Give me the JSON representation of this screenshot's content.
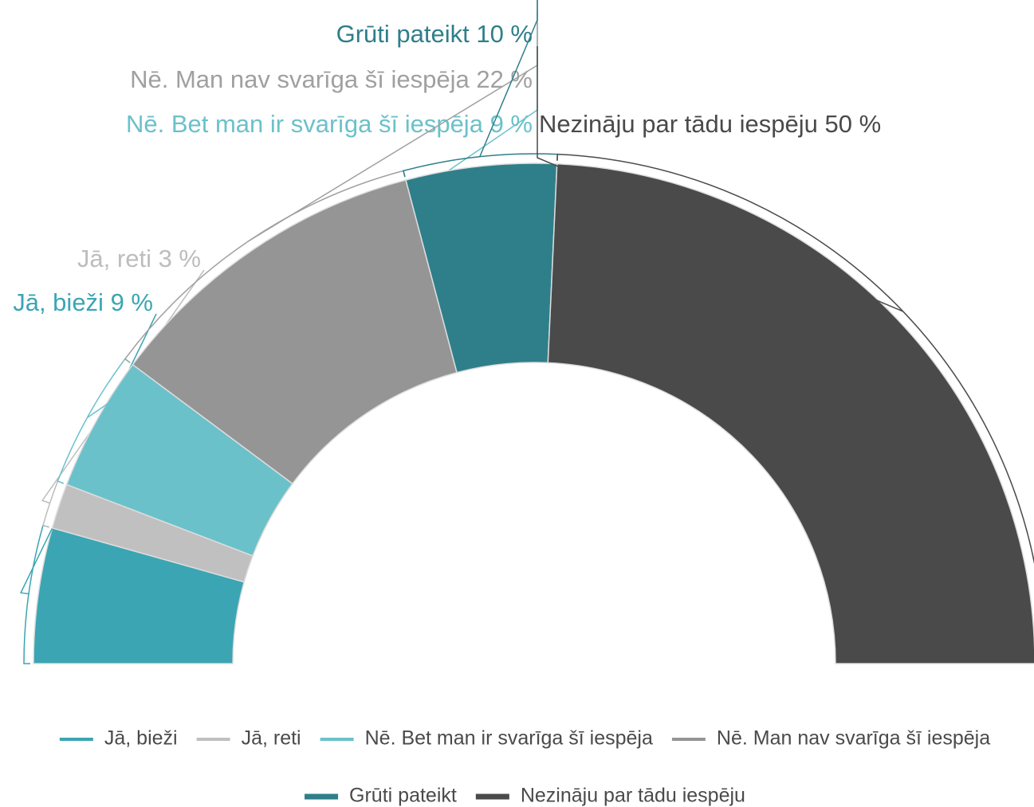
{
  "chart_data": {
    "type": "semi-donut",
    "categories": [
      "Jā, bieži",
      "Jā, reti",
      "Nē. Bet man ir svarīga šī iespēja",
      "Nē. Man nav svarīga šī iespēja",
      "Grūti pateikt",
      "Nezināju par tādu iespēju"
    ],
    "values": [
      9,
      3,
      9,
      22,
      10,
      50
    ],
    "value_labels": [
      "9 %",
      "3 %",
      "9 %",
      "22 %",
      "10 %",
      "50 %"
    ],
    "colors": [
      "#3ba5b3",
      "#c0c0c0",
      "#6bc1ca",
      "#959595",
      "#2e7f8a",
      "#4a4a4a"
    ],
    "legend": "bottom"
  }
}
